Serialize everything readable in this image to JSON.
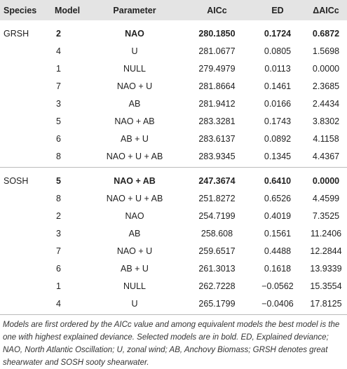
{
  "table": {
    "header": [
      "Species",
      "Model",
      "Parameter",
      "AICc",
      "ED",
      "ΔAICc"
    ],
    "groups": [
      {
        "species": "GRSH",
        "rows": [
          [
            "2",
            "NAO",
            "280.1850",
            "0.1724",
            "0.6872"
          ],
          [
            "4",
            "U",
            "281.0677",
            "0.0805",
            "1.5698"
          ],
          [
            "1",
            "NULL",
            "279.4979",
            "0.0113",
            "0.0000"
          ],
          [
            "7",
            "NAO + U",
            "281.8664",
            "0.1461",
            "2.3685"
          ],
          [
            "3",
            "AB",
            "281.9412",
            "0.0166",
            "2.4434"
          ],
          [
            "5",
            "NAO + AB",
            "283.3281",
            "0.1743",
            "3.8302"
          ],
          [
            "6",
            "AB + U",
            "283.6137",
            "0.0892",
            "4.1158"
          ],
          [
            "8",
            "NAO + U + AB",
            "283.9345",
            "0.1345",
            "4.4367"
          ]
        ]
      },
      {
        "species": "SOSH",
        "rows": [
          [
            "5",
            "NAO + AB",
            "247.3674",
            "0.6410",
            "0.0000"
          ],
          [
            "8",
            "NAO + U + AB",
            "251.8272",
            "0.6526",
            "4.4599"
          ],
          [
            "2",
            "NAO",
            "254.7199",
            "0.4019",
            "7.3525"
          ],
          [
            "3",
            "AB",
            "258.608",
            "0.1561",
            "11.2406"
          ],
          [
            "7",
            "NAO + U",
            "259.6517",
            "0.4488",
            "12.2844"
          ],
          [
            "6",
            "AB + U",
            "261.3013",
            "0.1618",
            "13.9339"
          ],
          [
            "1",
            "NULL",
            "262.7228",
            "−0.0562",
            "15.3554"
          ],
          [
            "4",
            "U",
            "265.1799",
            "−0.0406",
            "17.8125"
          ]
        ]
      }
    ],
    "caption": "Models are first ordered by the AICc value and among equivalent models the best model is the one with highest explained deviance. Selected models are in bold. ED, Explained deviance; NAO, North Atlantic Oscillation; U, zonal wind; AB, Anchovy Biomass; GRSH denotes great shearwater and SOSH sooty shearwater."
  }
}
